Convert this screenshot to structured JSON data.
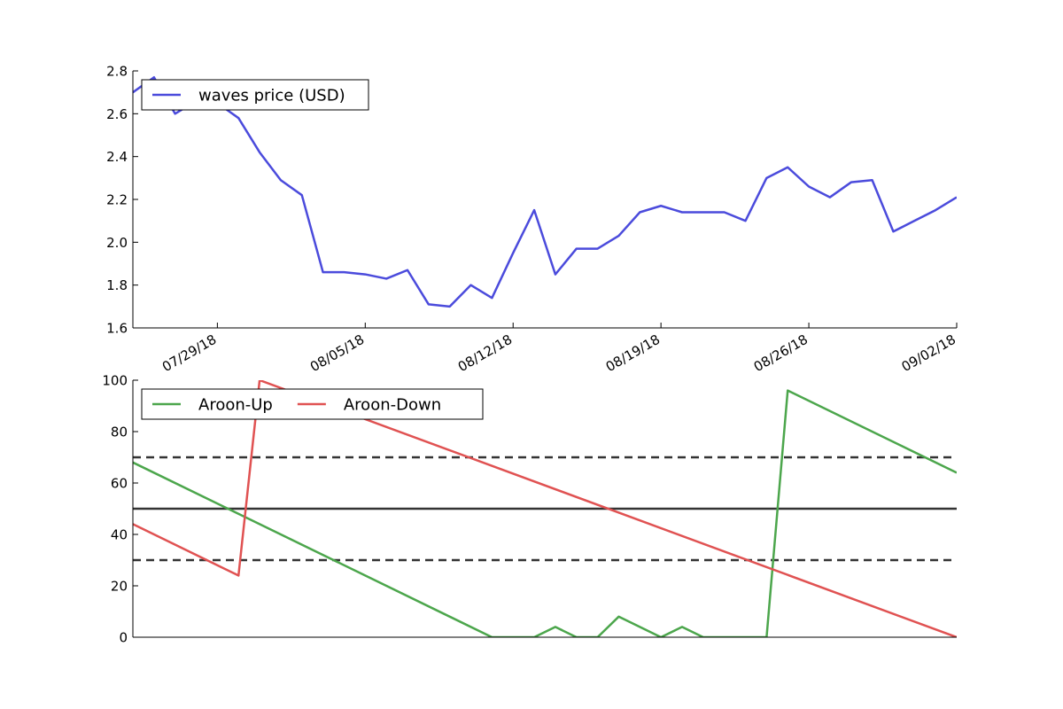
{
  "chart_data": [
    {
      "type": "line",
      "title": "",
      "xlabel": "",
      "ylabel": "",
      "xlim": [
        "2018-07-25",
        "2018-09-02"
      ],
      "ylim": [
        1.6,
        2.8
      ],
      "yticks": [
        1.6,
        1.8,
        2.0,
        2.2,
        2.4,
        2.6,
        2.8
      ],
      "xticks": [
        "2018-07-29",
        "2018-08-05",
        "2018-08-12",
        "2018-08-19",
        "2018-08-26",
        "2018-09-02"
      ],
      "xtick_labels": [
        "07/29/18",
        "08/05/18",
        "08/12/18",
        "08/19/18",
        "08/26/18",
        "09/02/18"
      ],
      "legend_position": "top-left",
      "grid": false,
      "series": [
        {
          "name": "waves price (USD)",
          "color": "#4b4bdc",
          "x": [
            "2018-07-25",
            "2018-07-26",
            "2018-07-27",
            "2018-07-28",
            "2018-07-29",
            "2018-07-30",
            "2018-07-31",
            "2018-08-01",
            "2018-08-02",
            "2018-08-03",
            "2018-08-04",
            "2018-08-05",
            "2018-08-06",
            "2018-08-07",
            "2018-08-08",
            "2018-08-09",
            "2018-08-10",
            "2018-08-11",
            "2018-08-12",
            "2018-08-13",
            "2018-08-14",
            "2018-08-15",
            "2018-08-16",
            "2018-08-17",
            "2018-08-18",
            "2018-08-19",
            "2018-08-20",
            "2018-08-21",
            "2018-08-22",
            "2018-08-23",
            "2018-08-24",
            "2018-08-25",
            "2018-08-26",
            "2018-08-27",
            "2018-08-28",
            "2018-08-29",
            "2018-08-30",
            "2018-08-31",
            "2018-09-01",
            "2018-09-02"
          ],
          "y": [
            2.7,
            2.77,
            2.6,
            2.66,
            2.65,
            2.58,
            2.42,
            2.29,
            2.22,
            1.86,
            1.86,
            1.85,
            1.83,
            1.87,
            1.71,
            1.7,
            1.8,
            1.74,
            1.95,
            2.15,
            1.85,
            1.97,
            1.97,
            2.03,
            2.14,
            2.17,
            2.14,
            2.14,
            2.14,
            2.1,
            2.3,
            2.35,
            2.26,
            2.21,
            2.28,
            2.29,
            2.05,
            2.1,
            2.15,
            2.21
          ]
        }
      ]
    },
    {
      "type": "line",
      "title": "",
      "xlabel": "",
      "ylabel": "",
      "xlim": [
        "2018-07-25",
        "2018-09-02"
      ],
      "ylim": [
        0,
        100
      ],
      "yticks": [
        0,
        20,
        40,
        60,
        80,
        100
      ],
      "legend_position": "top-left",
      "grid": false,
      "reference_lines": [
        {
          "y": 70,
          "style": "dashed",
          "color": "#333333"
        },
        {
          "y": 50,
          "style": "solid",
          "color": "#333333"
        },
        {
          "y": 30,
          "style": "dashed",
          "color": "#333333"
        }
      ],
      "series": [
        {
          "name": "Aroon-Up",
          "color": "#4ca64c",
          "x": [
            "2018-07-25",
            "2018-08-11",
            "2018-08-13",
            "2018-08-14",
            "2018-08-15",
            "2018-08-16",
            "2018-08-17",
            "2018-08-19",
            "2018-08-20",
            "2018-08-21",
            "2018-08-24",
            "2018-08-25",
            "2018-09-02"
          ],
          "y": [
            68,
            0,
            0,
            4,
            0,
            0,
            8,
            0,
            4,
            0,
            0,
            96,
            64
          ]
        },
        {
          "name": "Aroon-Down",
          "color": "#e05252",
          "x": [
            "2018-07-25",
            "2018-07-30",
            "2018-07-31",
            "2018-09-02"
          ],
          "y": [
            44,
            24,
            100,
            0
          ]
        }
      ]
    }
  ]
}
